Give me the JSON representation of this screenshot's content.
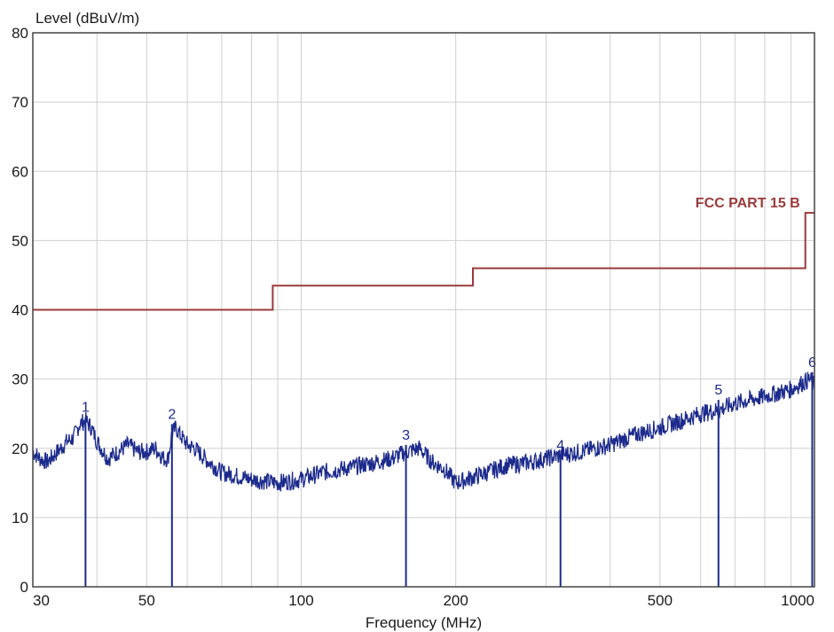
{
  "chart_data": {
    "type": "line",
    "ylabel": "Level (dBuV/m)",
    "xlabel": "Frequency (MHz)",
    "xscale": "log",
    "xlim": [
      30,
      1000
    ],
    "ylim": [
      0,
      80
    ],
    "grid": true,
    "x_ticks": [
      {
        "value": 30,
        "label": "30"
      },
      {
        "value": 50,
        "label": "50"
      },
      {
        "value": 100,
        "label": "100"
      },
      {
        "value": 200,
        "label": "200"
      },
      {
        "value": 500,
        "label": "500"
      },
      {
        "value": 1000,
        "label": "1000"
      }
    ],
    "y_ticks": [
      {
        "value": 0,
        "label": "0"
      },
      {
        "value": 10,
        "label": "10"
      },
      {
        "value": 20,
        "label": "20"
      },
      {
        "value": 30,
        "label": "30"
      },
      {
        "value": 40,
        "label": "40"
      },
      {
        "value": 50,
        "label": "50"
      },
      {
        "value": 60,
        "label": "60"
      },
      {
        "value": 70,
        "label": "70"
      },
      {
        "value": 80,
        "label": "80"
      }
    ],
    "limit_line": {
      "label": "FCC PART 15 B",
      "x": [
        30,
        88,
        88,
        216,
        216,
        960,
        960,
        1000
      ],
      "y": [
        40,
        40,
        43.5,
        43.5,
        46,
        46,
        54,
        54
      ]
    },
    "trace": {
      "x": [
        30,
        31,
        32,
        33,
        34,
        35,
        36,
        37,
        38,
        39,
        40,
        42,
        44,
        46,
        48,
        50,
        52,
        54,
        55,
        56,
        57,
        58,
        60,
        62,
        65,
        70,
        75,
        80,
        90,
        100,
        110,
        120,
        130,
        140,
        150,
        160,
        170,
        180,
        190,
        200,
        210,
        230,
        250,
        280,
        300,
        320,
        350,
        400,
        450,
        500,
        550,
        600,
        650,
        700,
        750,
        800,
        850,
        900,
        950,
        980,
        1000
      ],
      "y": [
        19.5,
        18.5,
        18.0,
        19.0,
        20.0,
        21.0,
        21.5,
        23.5,
        24.0,
        23.0,
        21.0,
        18.5,
        19.5,
        20.5,
        19.5,
        19.5,
        20.0,
        18.5,
        18.5,
        22.0,
        23.0,
        22.0,
        20.5,
        20.0,
        18.5,
        16.5,
        16.0,
        15.5,
        15.0,
        15.5,
        16.5,
        17.0,
        17.5,
        18.0,
        18.5,
        19.5,
        20.0,
        18.0,
        17.0,
        15.0,
        15.5,
        16.5,
        17.5,
        18.0,
        18.5,
        19.0,
        19.5,
        20.5,
        22.0,
        23.0,
        24.0,
        25.0,
        25.5,
        26.5,
        27.0,
        27.5,
        28.0,
        28.5,
        29.5,
        30.0,
        29.0
      ]
    },
    "markers": [
      {
        "label": "1",
        "x": 38,
        "y": 24.5
      },
      {
        "label": "2",
        "x": 56,
        "y": 23.5
      },
      {
        "label": "3",
        "x": 160,
        "y": 20.5
      },
      {
        "label": "4",
        "x": 320,
        "y": 19.0
      },
      {
        "label": "5",
        "x": 650,
        "y": 27.0
      },
      {
        "label": "6",
        "x": 990,
        "y": 31.0
      }
    ],
    "colors": {
      "trace": "#1c2a8c",
      "limit": "#9b3a3a",
      "grid": "#cfcfcf",
      "marker": "#1c2a8c"
    }
  }
}
